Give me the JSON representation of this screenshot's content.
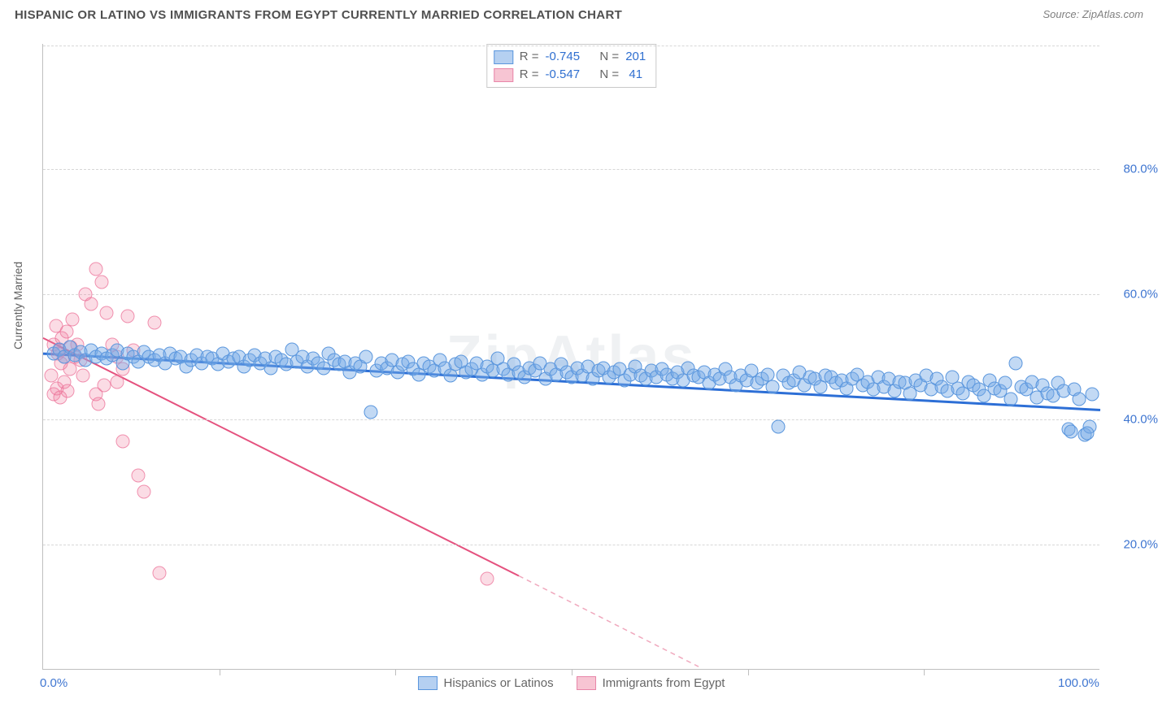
{
  "header": {
    "title": "HISPANIC OR LATINO VS IMMIGRANTS FROM EGYPT CURRENTLY MARRIED CORRELATION CHART",
    "source": "Source: ZipAtlas.com"
  },
  "watermark": "ZipAtlas",
  "axes": {
    "ylabel": "Currently Married",
    "ylim": [
      0,
      100
    ],
    "xlim": [
      0,
      100
    ],
    "yticks": [
      20,
      40,
      60,
      80
    ],
    "ytick_fmt": [
      "20.0%",
      "40.0%",
      "60.0%",
      "80.0%"
    ],
    "xticks_labels": [
      {
        "pos": 0,
        "label": "0.0%"
      },
      {
        "pos": 100,
        "label": "100.0%"
      }
    ],
    "xtick_majors": [
      16.67,
      33.33,
      50,
      66.67,
      83.33
    ],
    "grid_color": "#d7d7d7",
    "axis_color": "#bfbfbf",
    "tick_color": "#3f76d1"
  },
  "legend_top": {
    "rows": [
      {
        "swatch": "blue",
        "r_label": "R =",
        "r": "-0.745",
        "n_label": "N =",
        "n": "201"
      },
      {
        "swatch": "pink",
        "r_label": "R =",
        "r": "-0.547",
        "n_label": "N =",
        "n": " 41"
      }
    ]
  },
  "legend_bottom": {
    "items": [
      {
        "swatch": "blue",
        "label": "Hispanics or Latinos"
      },
      {
        "swatch": "pink",
        "label": "Immigrants from Egypt"
      }
    ]
  },
  "series": {
    "blue": {
      "color_fill": "rgba(120,170,230,0.45)",
      "color_stroke": "#5a96dd",
      "trend": {
        "x1": 0,
        "y1": 50.5,
        "x2": 100,
        "y2": 41.5,
        "stroke": "#2d6fd6",
        "width": 3
      },
      "points": [
        [
          1,
          50.5
        ],
        [
          1.5,
          51.2
        ],
        [
          2,
          50
        ],
        [
          2.5,
          51.5
        ],
        [
          3,
          50.2
        ],
        [
          3.5,
          50.8
        ],
        [
          4,
          49.5
        ],
        [
          4.5,
          51
        ],
        [
          5,
          50
        ],
        [
          5.5,
          50.5
        ],
        [
          6,
          49.8
        ],
        [
          6.5,
          50.2
        ],
        [
          7,
          51
        ],
        [
          7.5,
          49
        ],
        [
          8,
          50.5
        ],
        [
          8.5,
          50
        ],
        [
          9,
          49.2
        ],
        [
          9.5,
          50.8
        ],
        [
          10,
          50
        ],
        [
          10.5,
          49.5
        ],
        [
          11,
          50.2
        ],
        [
          11.5,
          49
        ],
        [
          12,
          50.5
        ],
        [
          12.5,
          49.8
        ],
        [
          13,
          50
        ],
        [
          13.5,
          48.5
        ],
        [
          14,
          49.5
        ],
        [
          14.5,
          50.2
        ],
        [
          15,
          49
        ],
        [
          15.5,
          50
        ],
        [
          16,
          49.8
        ],
        [
          16.5,
          48.8
        ],
        [
          17,
          50.5
        ],
        [
          17.5,
          49.2
        ],
        [
          18,
          49.8
        ],
        [
          18.5,
          50
        ],
        [
          19,
          48.5
        ],
        [
          19.5,
          49.5
        ],
        [
          20,
          50.2
        ],
        [
          20.5,
          49
        ],
        [
          21,
          49.8
        ],
        [
          21.5,
          48.2
        ],
        [
          22,
          50
        ],
        [
          22.5,
          49.5
        ],
        [
          23,
          48.8
        ],
        [
          23.5,
          51.2
        ],
        [
          24,
          49.2
        ],
        [
          24.5,
          50
        ],
        [
          25,
          48.5
        ],
        [
          25.5,
          49.8
        ],
        [
          26,
          49
        ],
        [
          26.5,
          48.2
        ],
        [
          27,
          50.5
        ],
        [
          27.5,
          49.5
        ],
        [
          28,
          48.8
        ],
        [
          28.5,
          49.2
        ],
        [
          29,
          47.5
        ],
        [
          29.5,
          49
        ],
        [
          30,
          48.5
        ],
        [
          30.5,
          50
        ],
        [
          31,
          41.2
        ],
        [
          31.5,
          47.8
        ],
        [
          32,
          49
        ],
        [
          32.5,
          48.2
        ],
        [
          33,
          49.5
        ],
        [
          33.5,
          47.5
        ],
        [
          34,
          48.8
        ],
        [
          34.5,
          49.2
        ],
        [
          35,
          48
        ],
        [
          35.5,
          47.2
        ],
        [
          36,
          49
        ],
        [
          36.5,
          48.5
        ],
        [
          37,
          47.8
        ],
        [
          37.5,
          49.5
        ],
        [
          38,
          48.2
        ],
        [
          38.5,
          47
        ],
        [
          39,
          48.8
        ],
        [
          39.5,
          49.2
        ],
        [
          40,
          47.5
        ],
        [
          40.5,
          48
        ],
        [
          41,
          49
        ],
        [
          41.5,
          47.2
        ],
        [
          42,
          48.5
        ],
        [
          42.5,
          47.8
        ],
        [
          43,
          49.8
        ],
        [
          43.5,
          48
        ],
        [
          44,
          47.2
        ],
        [
          44.5,
          48.8
        ],
        [
          45,
          47.5
        ],
        [
          45.5,
          46.8
        ],
        [
          46,
          48.2
        ],
        [
          46.5,
          47.8
        ],
        [
          47,
          49
        ],
        [
          47.5,
          46.5
        ],
        [
          48,
          48
        ],
        [
          48.5,
          47.2
        ],
        [
          49,
          48.8
        ],
        [
          49.5,
          47.5
        ],
        [
          50,
          46.8
        ],
        [
          50.5,
          48.2
        ],
        [
          51,
          47
        ],
        [
          51.5,
          48.5
        ],
        [
          52,
          46.5
        ],
        [
          52.5,
          47.8
        ],
        [
          53,
          48.2
        ],
        [
          53.5,
          46.8
        ],
        [
          54,
          47.5
        ],
        [
          54.5,
          48
        ],
        [
          55,
          46.2
        ],
        [
          55.5,
          47.2
        ],
        [
          56,
          48.5
        ],
        [
          56.5,
          47
        ],
        [
          57,
          46.5
        ],
        [
          57.5,
          47.8
        ],
        [
          58,
          46.8
        ],
        [
          58.5,
          48
        ],
        [
          59,
          47.2
        ],
        [
          59.5,
          46.5
        ],
        [
          60,
          47.5
        ],
        [
          60.5,
          46.2
        ],
        [
          61,
          48.2
        ],
        [
          61.5,
          47
        ],
        [
          62,
          46.8
        ],
        [
          62.5,
          47.5
        ],
        [
          63,
          45.8
        ],
        [
          63.5,
          47.2
        ],
        [
          64,
          46.5
        ],
        [
          64.5,
          48
        ],
        [
          65,
          46.8
        ],
        [
          65.5,
          45.5
        ],
        [
          66,
          47
        ],
        [
          66.5,
          46.2
        ],
        [
          67,
          47.8
        ],
        [
          67.5,
          45.8
        ],
        [
          68,
          46.5
        ],
        [
          68.5,
          47.2
        ],
        [
          69,
          45.2
        ],
        [
          69.5,
          38.8
        ],
        [
          70,
          47
        ],
        [
          70.5,
          45.8
        ],
        [
          71,
          46.2
        ],
        [
          71.5,
          47.5
        ],
        [
          72,
          45.5
        ],
        [
          72.5,
          46.8
        ],
        [
          73,
          46.5
        ],
        [
          73.5,
          45.2
        ],
        [
          74,
          47
        ],
        [
          74.5,
          46.8
        ],
        [
          75,
          45.8
        ],
        [
          75.5,
          46.2
        ],
        [
          76,
          45
        ],
        [
          76.5,
          46.5
        ],
        [
          77,
          47.2
        ],
        [
          77.5,
          45.5
        ],
        [
          78,
          46
        ],
        [
          78.5,
          44.8
        ],
        [
          79,
          46.8
        ],
        [
          79.5,
          45.2
        ],
        [
          80,
          46.5
        ],
        [
          80.5,
          44.5
        ],
        [
          81,
          46
        ],
        [
          81.5,
          45.8
        ],
        [
          82,
          44.2
        ],
        [
          82.5,
          46.2
        ],
        [
          83,
          45.5
        ],
        [
          83.5,
          47
        ],
        [
          84,
          44.8
        ],
        [
          84.5,
          46.5
        ],
        [
          85,
          45.2
        ],
        [
          85.5,
          44.5
        ],
        [
          86,
          46.8
        ],
        [
          86.5,
          45
        ],
        [
          87,
          44.2
        ],
        [
          87.5,
          46
        ],
        [
          88,
          45.5
        ],
        [
          88.5,
          44.8
        ],
        [
          89,
          43.8
        ],
        [
          89.5,
          46.2
        ],
        [
          90,
          45
        ],
        [
          90.5,
          44.5
        ],
        [
          91,
          45.8
        ],
        [
          91.5,
          43.2
        ],
        [
          92,
          49
        ],
        [
          92.5,
          45.2
        ],
        [
          93,
          44.8
        ],
        [
          93.5,
          46
        ],
        [
          94,
          43.5
        ],
        [
          94.5,
          45.5
        ],
        [
          95,
          44.2
        ],
        [
          95.5,
          43.8
        ],
        [
          96,
          45.8
        ],
        [
          96.5,
          44.5
        ],
        [
          97,
          38.5
        ],
        [
          97.2,
          38
        ],
        [
          97.5,
          44.8
        ],
        [
          98,
          43.2
        ],
        [
          98.5,
          37.5
        ],
        [
          99,
          38.8
        ],
        [
          98.8,
          37.8
        ],
        [
          99.2,
          44
        ]
      ]
    },
    "pink": {
      "color_fill": "rgba(240,130,160,0.28)",
      "color_stroke": "rgba(235,110,150,0.7)",
      "trend_solid": {
        "x1": 0,
        "y1": 53,
        "x2": 45,
        "y2": 15,
        "stroke": "#e5517e",
        "width": 2
      },
      "trend_dash": {
        "x1": 45,
        "y1": 15,
        "x2": 62,
        "y2": 0.5,
        "stroke": "#f0a8bd",
        "width": 1.5,
        "dash": "6,5"
      },
      "points": [
        [
          1,
          52
        ],
        [
          1.2,
          55
        ],
        [
          1.5,
          51
        ],
        [
          1.8,
          53
        ],
        [
          2,
          50
        ],
        [
          2.2,
          54
        ],
        [
          2.5,
          48
        ],
        [
          2.8,
          56
        ],
        [
          3,
          50
        ],
        [
          3.2,
          52
        ],
        [
          1,
          44
        ],
        [
          1.3,
          45
        ],
        [
          1.6,
          43.5
        ],
        [
          2,
          46
        ],
        [
          2.3,
          44.5
        ],
        [
          0.8,
          47
        ],
        [
          1.4,
          50.5
        ],
        [
          1.7,
          49
        ],
        [
          2.6,
          51.5
        ],
        [
          3.5,
          49.5
        ],
        [
          4,
          60
        ],
        [
          4.5,
          58.5
        ],
        [
          5,
          64
        ],
        [
          5.5,
          62
        ],
        [
          6,
          57
        ],
        [
          6.5,
          52
        ],
        [
          7,
          50
        ],
        [
          7.5,
          48
        ],
        [
          8,
          56.5
        ],
        [
          5,
          44
        ],
        [
          5.2,
          42.5
        ],
        [
          5.8,
          45.5
        ],
        [
          7,
          46
        ],
        [
          8.5,
          51
        ],
        [
          7.5,
          36.5
        ],
        [
          9,
          31
        ],
        [
          9.5,
          28.5
        ],
        [
          10.5,
          55.5
        ],
        [
          11,
          15.5
        ],
        [
          42,
          14.5
        ],
        [
          3.8,
          47
        ]
      ]
    }
  }
}
